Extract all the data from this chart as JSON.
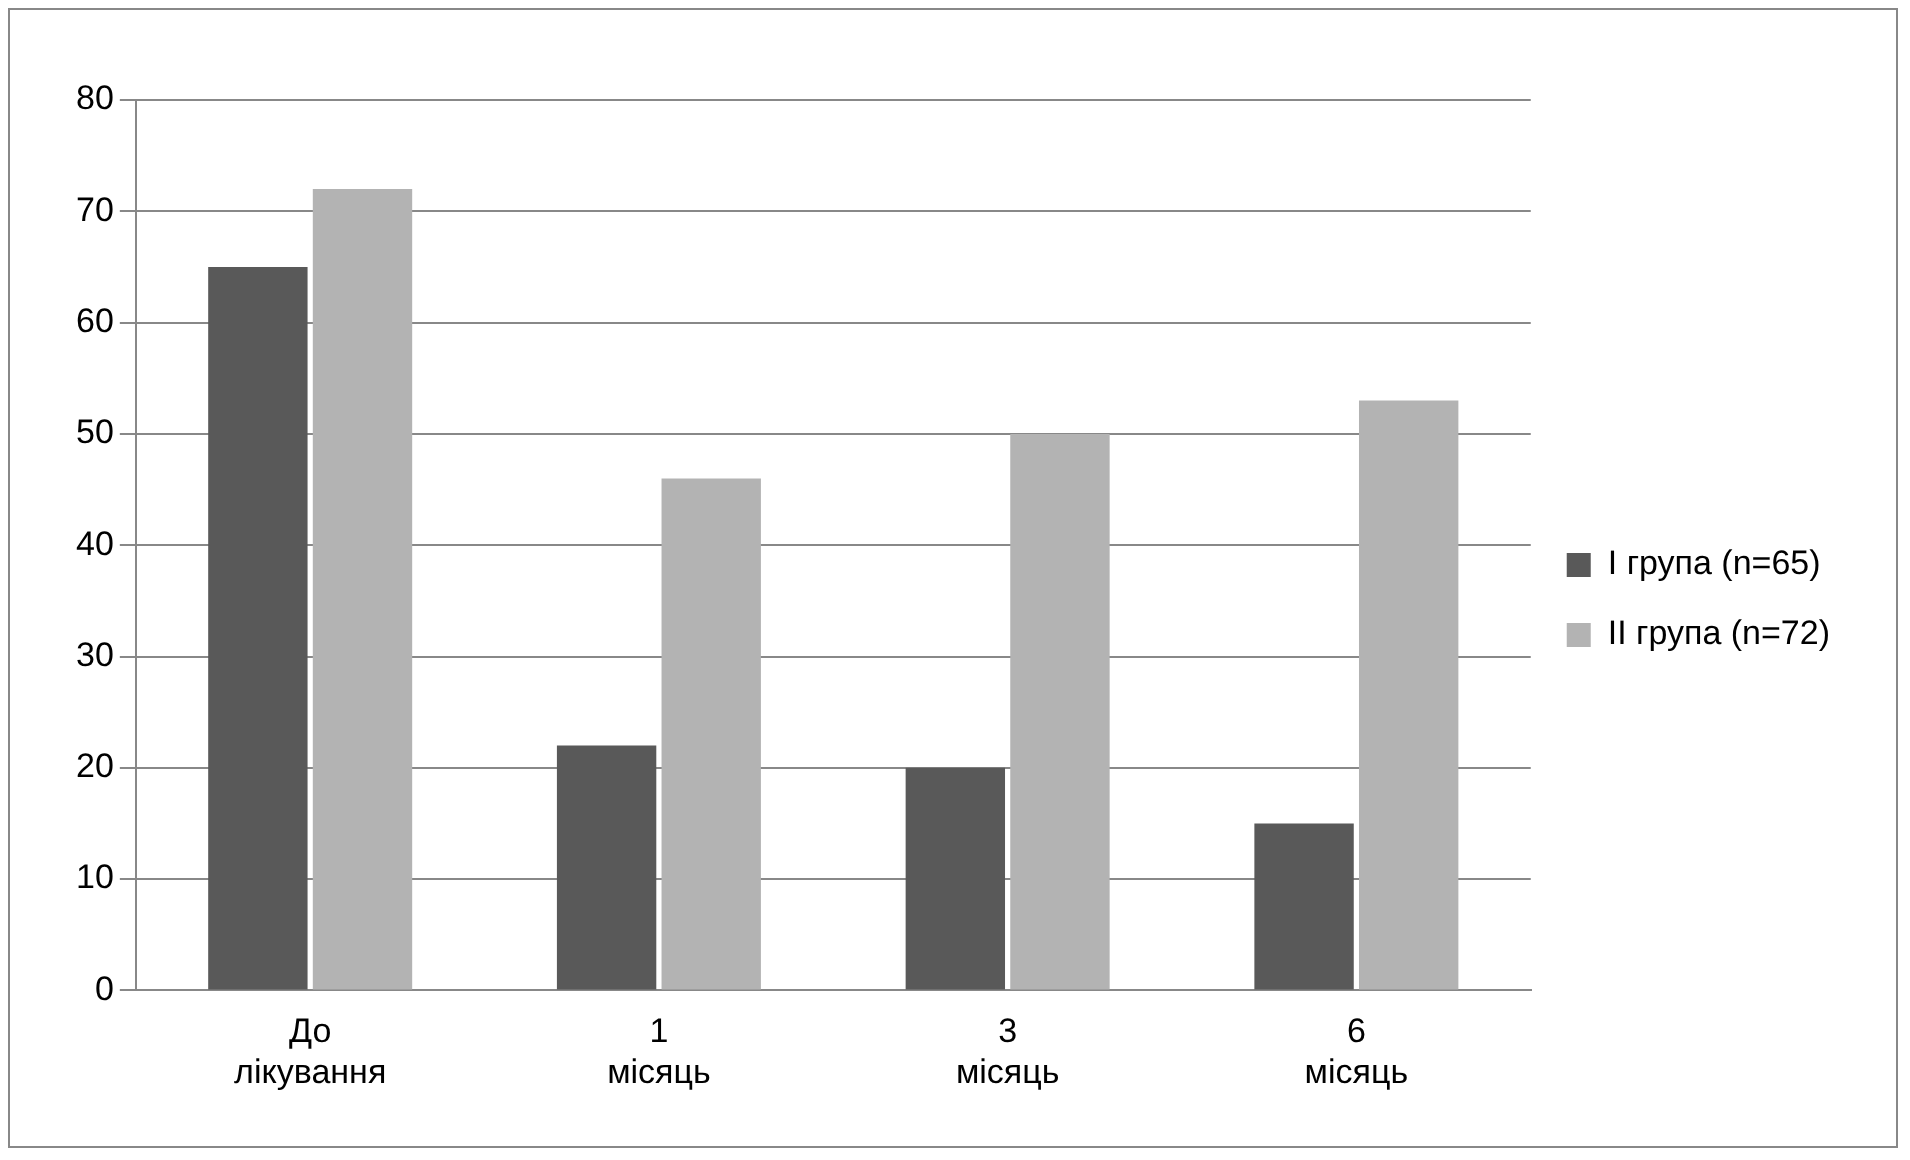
{
  "chart_data": {
    "type": "bar",
    "categories": [
      "До лікування",
      "1 місяць",
      "3 місяць",
      "6 місяць"
    ],
    "series": [
      {
        "name": "I група (n=65)",
        "color": "#595959",
        "values": [
          65,
          22,
          20,
          15
        ]
      },
      {
        "name": "II група (n=72)",
        "color": "#b3b3b3",
        "values": [
          72,
          46,
          50,
          53
        ]
      }
    ],
    "ylim": [
      0,
      80
    ],
    "yticks": [
      0,
      10,
      20,
      30,
      40,
      50,
      60,
      70,
      80
    ],
    "grid": "y",
    "legend": "right"
  }
}
